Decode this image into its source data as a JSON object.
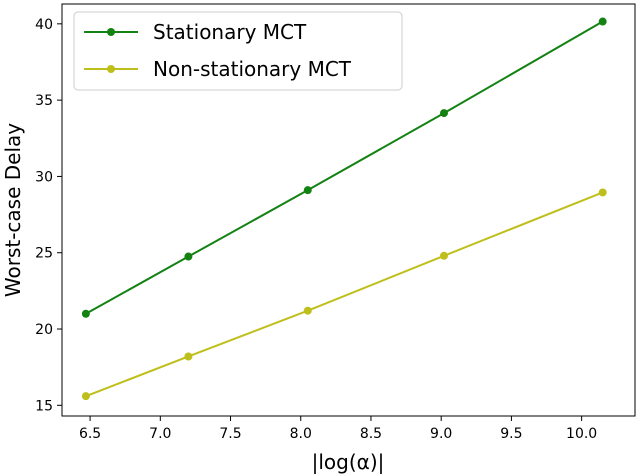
{
  "chart_data": {
    "type": "line",
    "title": "",
    "xlabel": "|log(α)|",
    "ylabel": "Worst-case Delay",
    "xlim": [
      6.3,
      10.38
    ],
    "ylim": [
      14.3,
      41.3
    ],
    "xticks": [
      "6.5",
      "7.0",
      "7.5",
      "8.0",
      "8.5",
      "9.0",
      "9.5",
      "10.0"
    ],
    "yticks": [
      "15",
      "20",
      "25",
      "30",
      "35",
      "40"
    ],
    "grid": false,
    "legend_position": "top-left",
    "series": [
      {
        "name": "Stationary MCT",
        "color": "#138213",
        "marker": "circle",
        "x": [
          6.47,
          7.2,
          8.05,
          9.02,
          10.15
        ],
        "y": [
          21.0,
          24.75,
          29.1,
          34.15,
          40.15
        ]
      },
      {
        "name": "Non-stationary MCT",
        "color": "#bfbf1b",
        "marker": "circle",
        "x": [
          6.47,
          7.2,
          8.05,
          9.02,
          10.15
        ],
        "y": [
          15.6,
          18.2,
          21.2,
          24.8,
          28.95
        ]
      }
    ]
  }
}
